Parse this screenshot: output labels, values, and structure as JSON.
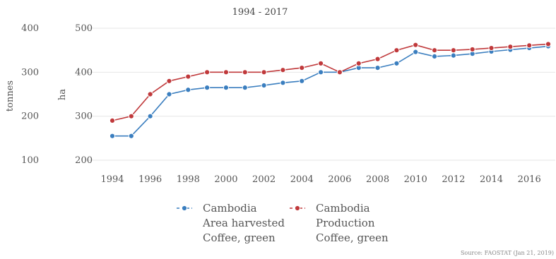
{
  "chart_data": {
    "type": "line",
    "subtitle": "1994 - 2017",
    "x": [
      1994,
      1995,
      1996,
      1997,
      1998,
      1999,
      2000,
      2001,
      2002,
      2003,
      2004,
      2005,
      2006,
      2007,
      2008,
      2009,
      2010,
      2011,
      2012,
      2013,
      2014,
      2015,
      2016,
      2017
    ],
    "x_ticks": [
      "1994",
      "1996",
      "1998",
      "2000",
      "2002",
      "2004",
      "2006",
      "2008",
      "2010",
      "2012",
      "2014",
      "2016"
    ],
    "left_axis": {
      "label": "tonnes",
      "ticks": [
        "100",
        "200",
        "300",
        "400"
      ],
      "ylim": [
        100,
        400
      ]
    },
    "right_axis": {
      "label": "ha",
      "ticks": [
        "200",
        "300",
        "400",
        "500"
      ],
      "ylim": [
        200,
        500
      ]
    },
    "grid": true,
    "legend_position": "bottom",
    "series": [
      {
        "name_lines": [
          "Cambodia",
          "Area harvested",
          "Coffee, green"
        ],
        "axis": "right",
        "color": "#3a7ebf",
        "values": [
          255,
          255,
          300,
          350,
          360,
          365,
          365,
          365,
          370,
          376,
          380,
          400,
          400,
          410,
          410,
          420,
          446,
          436,
          438,
          442,
          447,
          451,
          455,
          459
        ]
      },
      {
        "name_lines": [
          "Cambodia",
          "Production",
          "Coffee, green"
        ],
        "axis": "left",
        "color": "#c0393b",
        "values": [
          190,
          200,
          250,
          280,
          290,
          300,
          300,
          300,
          300,
          305,
          310,
          320,
          300,
          320,
          330,
          350,
          362,
          350,
          350,
          352,
          355,
          358,
          361,
          364
        ]
      }
    ],
    "source": "Source: FAOSTAT (Jan 21, 2019)"
  }
}
